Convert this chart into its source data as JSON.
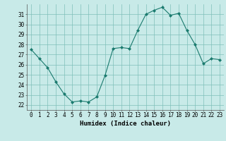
{
  "x": [
    0,
    1,
    2,
    3,
    4,
    5,
    6,
    7,
    8,
    9,
    10,
    11,
    12,
    13,
    14,
    15,
    16,
    17,
    18,
    19,
    20,
    21,
    22,
    23
  ],
  "y": [
    27.5,
    26.6,
    25.7,
    24.3,
    23.1,
    22.3,
    22.4,
    22.3,
    22.8,
    24.9,
    27.6,
    27.7,
    27.6,
    29.4,
    31.0,
    31.4,
    31.7,
    30.9,
    31.1,
    29.4,
    28.0,
    26.1,
    26.6,
    26.5
  ],
  "line_color": "#1a7a6e",
  "marker_color": "#1a7a6e",
  "bg_color": "#c8eae8",
  "grid_color": "#7fbfba",
  "xlabel": "Humidex (Indice chaleur)",
  "ylim": [
    21.5,
    32.0
  ],
  "xlim": [
    -0.5,
    23.5
  ],
  "yticks": [
    22,
    23,
    24,
    25,
    26,
    27,
    28,
    29,
    30,
    31
  ],
  "xticks": [
    0,
    1,
    2,
    3,
    4,
    5,
    6,
    7,
    8,
    9,
    10,
    11,
    12,
    13,
    14,
    15,
    16,
    17,
    18,
    19,
    20,
    21,
    22,
    23
  ],
  "xtick_labels": [
    "0",
    "1",
    "2",
    "3",
    "4",
    "5",
    "6",
    "7",
    "8",
    "9",
    "10",
    "11",
    "12",
    "13",
    "14",
    "15",
    "16",
    "17",
    "18",
    "19",
    "20",
    "21",
    "22",
    "23"
  ],
  "tick_fontsize": 5.5,
  "xlabel_fontsize": 6.5,
  "xlabel_fontweight": "bold"
}
